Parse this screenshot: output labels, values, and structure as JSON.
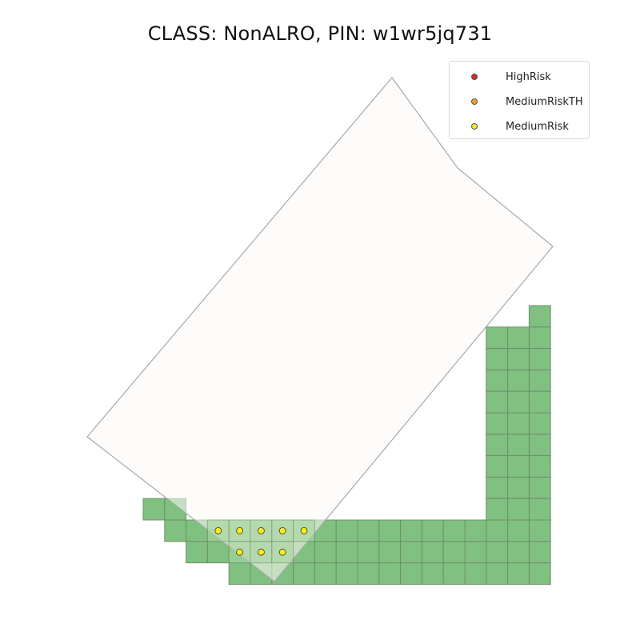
{
  "chart_data": {
    "type": "map",
    "title": "CLASS: NonALRO, PIN: w1wr5jq731",
    "legend": [
      {
        "name": "HighRisk",
        "color": "#d62728"
      },
      {
        "name": "MediumRiskTH",
        "color": "#f2a21b"
      },
      {
        "name": "MediumRisk",
        "color": "#f5ec1b"
      }
    ],
    "legend_position": "top-right",
    "grid_on": false,
    "parcel": {
      "fill": "#fef9f6",
      "stroke": "#a8a8a8",
      "vertices": [
        [
          490,
          97
        ],
        [
          572,
          210
        ],
        [
          691,
          308
        ],
        [
          343,
          727
        ],
        [
          109,
          546
        ]
      ]
    },
    "cell_color_outside": "#80c080",
    "cell_color_inside": "#a6d4a0",
    "cell_stroke": "#6f8f6f",
    "cell_rows": [
      {
        "row": 0,
        "cols": [
          18
        ]
      },
      {
        "row": 1,
        "cols": [
          16,
          17,
          18
        ]
      },
      {
        "row": 2,
        "cols": [
          16,
          17,
          18
        ]
      },
      {
        "row": 3,
        "cols": [
          16,
          17,
          18
        ]
      },
      {
        "row": 4,
        "cols": [
          16,
          17,
          18
        ]
      },
      {
        "row": 5,
        "cols": [
          16,
          17,
          18
        ]
      },
      {
        "row": 6,
        "cols": [
          16,
          17,
          18
        ]
      },
      {
        "row": 7,
        "cols": [
          16,
          17,
          18
        ]
      },
      {
        "row": 8,
        "cols": [
          16,
          17,
          18
        ]
      },
      {
        "row": 9,
        "cols": [
          0,
          1,
          16,
          17,
          18
        ]
      },
      {
        "row": 10,
        "cols": [
          1,
          2,
          3,
          4,
          5,
          6,
          7,
          8,
          9,
          10,
          11,
          12,
          13,
          14,
          15,
          16,
          17,
          18
        ]
      },
      {
        "row": 11,
        "cols": [
          2,
          3,
          4,
          5,
          6,
          7,
          8,
          9,
          10,
          11,
          12,
          13,
          14,
          15,
          16,
          17,
          18
        ]
      },
      {
        "row": 12,
        "cols": [
          4,
          5,
          6,
          7,
          8,
          9,
          10,
          11,
          12,
          13,
          14,
          15,
          16,
          17,
          18
        ]
      }
    ],
    "points": [
      {
        "category": "MediumRisk",
        "row": 10,
        "col": 3
      },
      {
        "category": "MediumRisk",
        "row": 10,
        "col": 4
      },
      {
        "category": "MediumRisk",
        "row": 10,
        "col": 5
      },
      {
        "category": "MediumRisk",
        "row": 10,
        "col": 6
      },
      {
        "category": "MediumRisk",
        "row": 10,
        "col": 7
      },
      {
        "category": "MediumRisk",
        "row": 11,
        "col": 4
      },
      {
        "category": "MediumRisk",
        "row": 11,
        "col": 5
      },
      {
        "category": "MediumRisk",
        "row": 11,
        "col": 6
      }
    ]
  }
}
